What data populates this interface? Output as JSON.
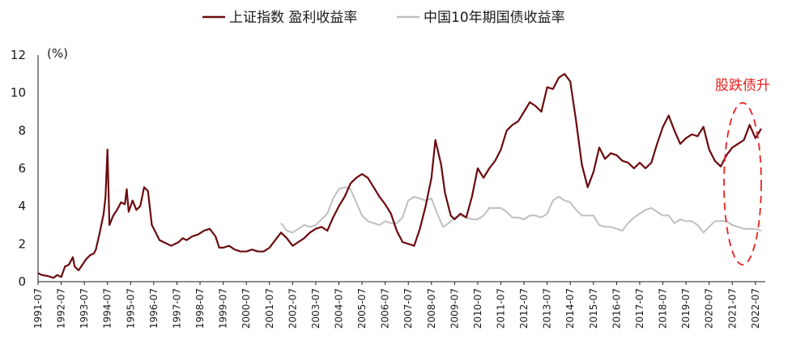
{
  "chart_data": {
    "type": "line",
    "unit_label": "(%)",
    "ylim": [
      0,
      12
    ],
    "y_ticks": [
      "0",
      "2",
      "4",
      "6",
      "8",
      "10",
      "12"
    ],
    "x_range": [
      "1991-07",
      "2022-10"
    ],
    "x_ticks": [
      "1991-07",
      "1992-07",
      "1993-07",
      "1994-07",
      "1995-07",
      "1996-07",
      "1997-07",
      "1998-07",
      "1999-07",
      "2000-07",
      "2001-07",
      "2002-07",
      "2003-07",
      "2004-07",
      "2005-07",
      "2006-07",
      "2007-07",
      "2008-07",
      "2009-07",
      "2010-07",
      "2011-07",
      "2012-07",
      "2013-07",
      "2014-07",
      "2015-07",
      "2016-07",
      "2017-07",
      "2018-07",
      "2019-07",
      "2020-07",
      "2021-07",
      "2022-07"
    ],
    "grid": false,
    "legend_position": "top-center",
    "annotation": {
      "text": "股跌债升",
      "color": "#e8201f"
    },
    "series": [
      {
        "name": "上证指数 盈利收益率",
        "color": "#6b0a0e",
        "points": [
          [
            "1991-07",
            0.45
          ],
          [
            "1991-09",
            0.35
          ],
          [
            "1991-12",
            0.3
          ],
          [
            "1992-03",
            0.2
          ],
          [
            "1992-05",
            0.35
          ],
          [
            "1992-07",
            0.25
          ],
          [
            "1992-09",
            0.8
          ],
          [
            "1992-11",
            0.9
          ],
          [
            "1993-01",
            1.3
          ],
          [
            "1993-02",
            0.8
          ],
          [
            "1993-04",
            0.6
          ],
          [
            "1993-06",
            0.9
          ],
          [
            "1993-08",
            1.2
          ],
          [
            "1993-10",
            1.4
          ],
          [
            "1993-12",
            1.5
          ],
          [
            "1994-01",
            1.7
          ],
          [
            "1994-03",
            2.6
          ],
          [
            "1994-05",
            3.6
          ],
          [
            "1994-06",
            4.5
          ],
          [
            "1994-07",
            7.0
          ],
          [
            "1994-08",
            3.0
          ],
          [
            "1994-10",
            3.5
          ],
          [
            "1994-12",
            3.8
          ],
          [
            "1995-02",
            4.2
          ],
          [
            "1995-04",
            4.1
          ],
          [
            "1995-05",
            4.9
          ],
          [
            "1995-06",
            3.7
          ],
          [
            "1995-08",
            4.3
          ],
          [
            "1995-10",
            3.8
          ],
          [
            "1995-12",
            4.0
          ],
          [
            "1996-02",
            5.0
          ],
          [
            "1996-04",
            4.8
          ],
          [
            "1996-06",
            3.0
          ],
          [
            "1996-08",
            2.6
          ],
          [
            "1996-10",
            2.2
          ],
          [
            "1996-12",
            2.1
          ],
          [
            "1997-02",
            2.0
          ],
          [
            "1997-04",
            1.9
          ],
          [
            "1997-06",
            2.0
          ],
          [
            "1997-08",
            2.1
          ],
          [
            "1997-10",
            2.3
          ],
          [
            "1997-12",
            2.2
          ],
          [
            "1998-03",
            2.4
          ],
          [
            "1998-06",
            2.5
          ],
          [
            "1998-09",
            2.7
          ],
          [
            "1998-12",
            2.8
          ],
          [
            "1999-03",
            2.4
          ],
          [
            "1999-05",
            1.8
          ],
          [
            "1999-07",
            1.8
          ],
          [
            "1999-10",
            1.9
          ],
          [
            "2000-01",
            1.7
          ],
          [
            "2000-04",
            1.6
          ],
          [
            "2000-07",
            1.6
          ],
          [
            "2000-10",
            1.7
          ],
          [
            "2001-01",
            1.6
          ],
          [
            "2001-04",
            1.6
          ],
          [
            "2001-07",
            1.8
          ],
          [
            "2001-10",
            2.2
          ],
          [
            "2002-01",
            2.6
          ],
          [
            "2002-04",
            2.3
          ],
          [
            "2002-07",
            1.9
          ],
          [
            "2002-10",
            2.1
          ],
          [
            "2003-01",
            2.3
          ],
          [
            "2003-04",
            2.6
          ],
          [
            "2003-07",
            2.8
          ],
          [
            "2003-10",
            2.9
          ],
          [
            "2004-01",
            2.7
          ],
          [
            "2004-04",
            3.4
          ],
          [
            "2004-07",
            4.0
          ],
          [
            "2004-10",
            4.5
          ],
          [
            "2005-01",
            5.2
          ],
          [
            "2005-04",
            5.5
          ],
          [
            "2005-07",
            5.7
          ],
          [
            "2005-10",
            5.5
          ],
          [
            "2006-01",
            5.0
          ],
          [
            "2006-04",
            4.5
          ],
          [
            "2006-07",
            4.1
          ],
          [
            "2006-10",
            3.6
          ],
          [
            "2007-01",
            2.7
          ],
          [
            "2007-04",
            2.1
          ],
          [
            "2007-07",
            2.0
          ],
          [
            "2007-10",
            1.9
          ],
          [
            "2008-01",
            2.8
          ],
          [
            "2008-04",
            4.0
          ],
          [
            "2008-07",
            5.5
          ],
          [
            "2008-09",
            7.5
          ],
          [
            "2008-12",
            6.2
          ],
          [
            "2009-02",
            4.7
          ],
          [
            "2009-05",
            3.5
          ],
          [
            "2009-07",
            3.3
          ],
          [
            "2009-10",
            3.6
          ],
          [
            "2010-01",
            3.4
          ],
          [
            "2010-04",
            4.5
          ],
          [
            "2010-07",
            6.0
          ],
          [
            "2010-10",
            5.5
          ],
          [
            "2011-01",
            6.0
          ],
          [
            "2011-04",
            6.4
          ],
          [
            "2011-07",
            7.0
          ],
          [
            "2011-10",
            8.0
          ],
          [
            "2012-01",
            8.3
          ],
          [
            "2012-04",
            8.5
          ],
          [
            "2012-07",
            9.0
          ],
          [
            "2012-10",
            9.5
          ],
          [
            "2013-01",
            9.3
          ],
          [
            "2013-04",
            9.0
          ],
          [
            "2013-07",
            10.3
          ],
          [
            "2013-10",
            10.2
          ],
          [
            "2014-01",
            10.8
          ],
          [
            "2014-04",
            11.0
          ],
          [
            "2014-07",
            10.6
          ],
          [
            "2014-10",
            8.5
          ],
          [
            "2015-01",
            6.2
          ],
          [
            "2015-04",
            5.0
          ],
          [
            "2015-07",
            5.8
          ],
          [
            "2015-10",
            7.1
          ],
          [
            "2016-01",
            6.5
          ],
          [
            "2016-04",
            6.8
          ],
          [
            "2016-07",
            6.7
          ],
          [
            "2016-10",
            6.4
          ],
          [
            "2017-01",
            6.3
          ],
          [
            "2017-04",
            6.0
          ],
          [
            "2017-07",
            6.3
          ],
          [
            "2017-10",
            6.0
          ],
          [
            "2018-01",
            6.3
          ],
          [
            "2018-04",
            7.3
          ],
          [
            "2018-07",
            8.2
          ],
          [
            "2018-10",
            8.8
          ],
          [
            "2019-01",
            8.0
          ],
          [
            "2019-04",
            7.3
          ],
          [
            "2019-07",
            7.6
          ],
          [
            "2019-10",
            7.8
          ],
          [
            "2020-01",
            7.7
          ],
          [
            "2020-04",
            8.2
          ],
          [
            "2020-07",
            7.0
          ],
          [
            "2020-10",
            6.4
          ],
          [
            "2021-01",
            6.1
          ],
          [
            "2021-04",
            6.7
          ],
          [
            "2021-07",
            7.1
          ],
          [
            "2021-10",
            7.3
          ],
          [
            "2022-01",
            7.5
          ],
          [
            "2022-04",
            8.3
          ],
          [
            "2022-07",
            7.6
          ],
          [
            "2022-10",
            8.1
          ]
        ]
      },
      {
        "name": "中国10年期国债收益率",
        "color": "#bfbfbf",
        "points": [
          [
            "2002-01",
            3.1
          ],
          [
            "2002-04",
            2.7
          ],
          [
            "2002-07",
            2.6
          ],
          [
            "2002-10",
            2.8
          ],
          [
            "2003-01",
            3.0
          ],
          [
            "2003-04",
            2.9
          ],
          [
            "2003-07",
            3.0
          ],
          [
            "2003-10",
            3.3
          ],
          [
            "2004-01",
            3.6
          ],
          [
            "2004-04",
            4.4
          ],
          [
            "2004-07",
            4.9
          ],
          [
            "2004-10",
            5.0
          ],
          [
            "2005-01",
            4.9
          ],
          [
            "2005-04",
            4.2
          ],
          [
            "2005-07",
            3.5
          ],
          [
            "2005-10",
            3.2
          ],
          [
            "2006-01",
            3.1
          ],
          [
            "2006-04",
            3.0
          ],
          [
            "2006-07",
            3.2
          ],
          [
            "2006-10",
            3.1
          ],
          [
            "2007-01",
            3.1
          ],
          [
            "2007-04",
            3.4
          ],
          [
            "2007-07",
            4.3
          ],
          [
            "2007-10",
            4.5
          ],
          [
            "2008-01",
            4.4
          ],
          [
            "2008-04",
            4.3
          ],
          [
            "2008-07",
            4.4
          ],
          [
            "2008-10",
            3.6
          ],
          [
            "2009-01",
            2.9
          ],
          [
            "2009-04",
            3.1
          ],
          [
            "2009-07",
            3.4
          ],
          [
            "2009-10",
            3.5
          ],
          [
            "2010-01",
            3.4
          ],
          [
            "2010-04",
            3.3
          ],
          [
            "2010-07",
            3.3
          ],
          [
            "2010-10",
            3.5
          ],
          [
            "2011-01",
            3.9
          ],
          [
            "2011-04",
            3.9
          ],
          [
            "2011-07",
            3.9
          ],
          [
            "2011-10",
            3.7
          ],
          [
            "2012-01",
            3.4
          ],
          [
            "2012-04",
            3.4
          ],
          [
            "2012-07",
            3.3
          ],
          [
            "2012-10",
            3.5
          ],
          [
            "2013-01",
            3.5
          ],
          [
            "2013-04",
            3.4
          ],
          [
            "2013-07",
            3.6
          ],
          [
            "2013-10",
            4.3
          ],
          [
            "2014-01",
            4.5
          ],
          [
            "2014-04",
            4.3
          ],
          [
            "2014-07",
            4.2
          ],
          [
            "2014-10",
            3.8
          ],
          [
            "2015-01",
            3.5
          ],
          [
            "2015-04",
            3.5
          ],
          [
            "2015-07",
            3.5
          ],
          [
            "2015-10",
            3.0
          ],
          [
            "2016-01",
            2.9
          ],
          [
            "2016-04",
            2.9
          ],
          [
            "2016-07",
            2.8
          ],
          [
            "2016-10",
            2.7
          ],
          [
            "2017-01",
            3.1
          ],
          [
            "2017-04",
            3.4
          ],
          [
            "2017-07",
            3.6
          ],
          [
            "2017-10",
            3.8
          ],
          [
            "2018-01",
            3.9
          ],
          [
            "2018-04",
            3.7
          ],
          [
            "2018-07",
            3.5
          ],
          [
            "2018-10",
            3.5
          ],
          [
            "2019-01",
            3.1
          ],
          [
            "2019-04",
            3.3
          ],
          [
            "2019-07",
            3.2
          ],
          [
            "2019-10",
            3.2
          ],
          [
            "2020-01",
            3.0
          ],
          [
            "2020-04",
            2.6
          ],
          [
            "2020-07",
            2.9
          ],
          [
            "2020-10",
            3.2
          ],
          [
            "2021-01",
            3.2
          ],
          [
            "2021-04",
            3.2
          ],
          [
            "2021-07",
            3.0
          ],
          [
            "2021-10",
            2.9
          ],
          [
            "2022-01",
            2.8
          ],
          [
            "2022-04",
            2.8
          ],
          [
            "2022-07",
            2.8
          ],
          [
            "2022-10",
            2.7
          ]
        ]
      }
    ]
  }
}
